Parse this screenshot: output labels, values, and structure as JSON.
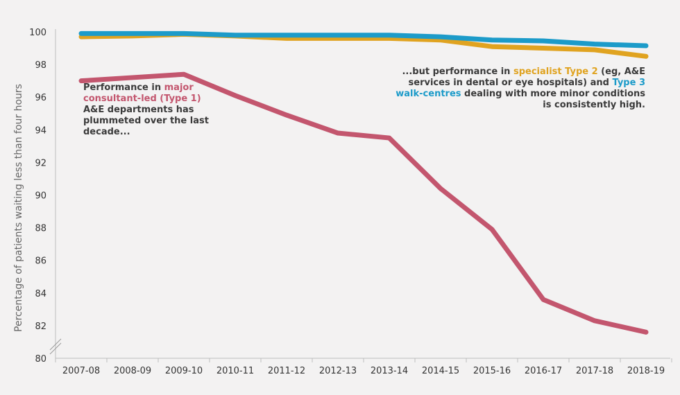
{
  "chart_data": {
    "type": "line",
    "categories": [
      "2007-08",
      "2008-09",
      "2009-10",
      "2010-11",
      "2011-12",
      "2012-13",
      "2013-14",
      "2014-15",
      "2015-16",
      "2016-17",
      "2017-18",
      "2018-19"
    ],
    "series": [
      {
        "id": "type2",
        "color": "#e0a320",
        "values": [
          99.7,
          99.75,
          99.85,
          99.75,
          99.6,
          99.6,
          99.6,
          99.5,
          99.1,
          99.0,
          98.9,
          98.5
        ]
      },
      {
        "id": "type3",
        "color": "#1c9bc9",
        "values": [
          99.9,
          99.9,
          99.9,
          99.8,
          99.8,
          99.8,
          99.8,
          99.7,
          99.5,
          99.45,
          99.25,
          99.15
        ]
      },
      {
        "id": "type1",
        "color": "#c3566e",
        "values": [
          97.0,
          97.2,
          97.4,
          96.1,
          94.9,
          93.8,
          93.5,
          90.4,
          87.9,
          83.6,
          82.3,
          81.6
        ]
      }
    ],
    "ylabel": "Percentage of patients waiting less than four hours",
    "ylim": [
      80,
      100
    ],
    "yticks": [
      80,
      82,
      84,
      86,
      88,
      90,
      92,
      94,
      96,
      98,
      100
    ],
    "grid": false,
    "axis_break": true,
    "annotations": {
      "type1": {
        "pre": "Performance in ",
        "highlight": "major consultant-led (Type 1)",
        "post": " A&E departments has plummeted over the last decade..."
      },
      "type23": {
        "pre": "...but performance in ",
        "highlight1": "specialist Type 2",
        "mid": " (eg, A&E services in dental or eye hospitals) and ",
        "highlight2": "Type 3 walk-centres",
        "post": " dealing with more minor conditions is consistently high."
      }
    }
  }
}
